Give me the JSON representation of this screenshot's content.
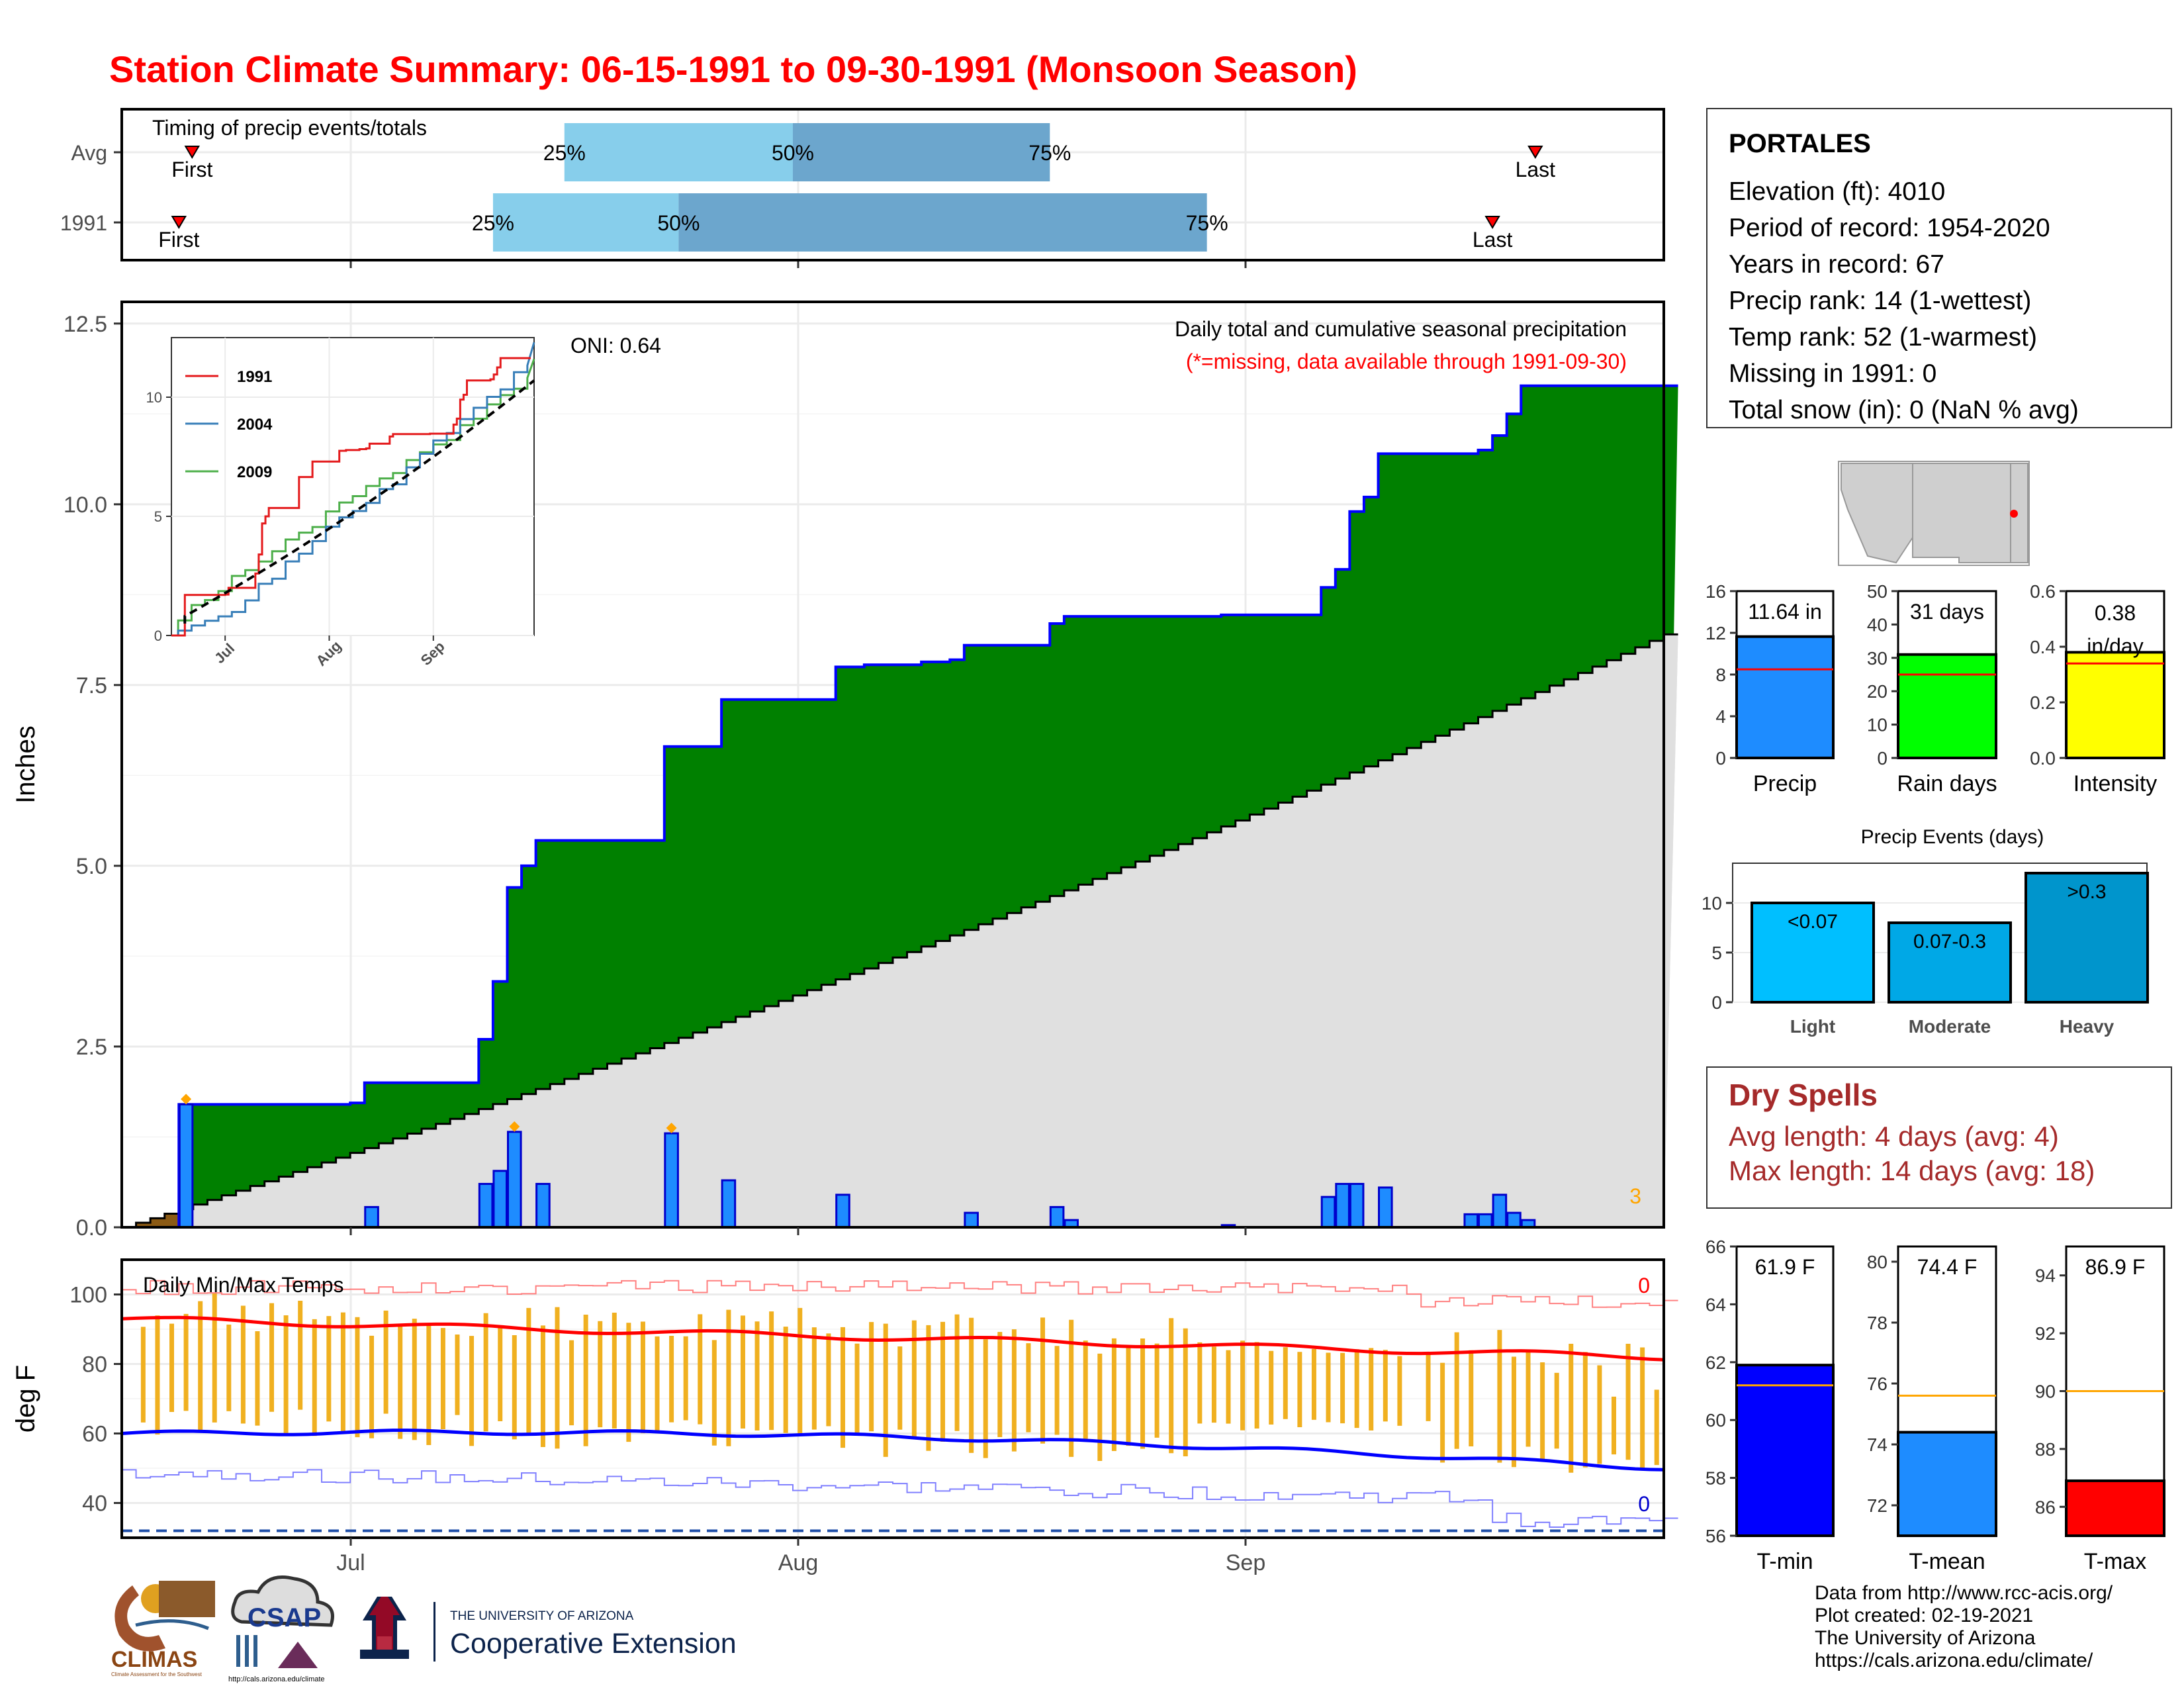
{
  "title": "Station Climate Summary: 06-15-1991 to 09-30-1991 (Monsoon Season)",
  "colors": {
    "title_red": "#ff0000",
    "precip_green": "#008000",
    "normal_gray": "#e0e0e0",
    "bar_blue": "#1e8cff",
    "light_blue_q": "#87ceeb",
    "mid_blue_q": "#6ca6cd",
    "tmax_red": "#ff0000",
    "tmin_blue": "#0000ff",
    "temp_range_orange": "#f0b020",
    "dry_spell_brown": "#a52a2a"
  },
  "timing": {
    "title": "Timing of precip events/totals",
    "rows": [
      {
        "label": "Avg",
        "first_date": "1991-06-19",
        "q25_date": "1991-07-16",
        "q50_date": "1991-08-01",
        "q75_date": "1991-08-19",
        "last_date": "1991-09-22",
        "q25_label": "25%",
        "q50_label": "50%",
        "q75_label": "75%",
        "first_label": "First",
        "last_label": "Last"
      },
      {
        "label": "1991",
        "first_date": "1991-06-19",
        "q25_date": "1991-07-11",
        "q50_date": "1991-07-24",
        "q75_date": "1991-08-30",
        "last_date": "1991-09-19",
        "q25_label": "25%",
        "q50_label": "50%",
        "q75_label": "75%",
        "first_label": "First",
        "last_label": "Last"
      }
    ]
  },
  "station": {
    "name": "PORTALES",
    "lines": [
      "Elevation (ft): 4010",
      "Period of record: 1954-2020",
      "Years in record: 67",
      "Precip rank: 14 (1-wettest)",
      "Temp rank: 52 (1-warmest)",
      "Missing in 1991: 0",
      "Total snow (in): 0 (NaN % avg)"
    ]
  },
  "precip_panel": {
    "ylabel": "Inches",
    "yticks": [
      "0.0",
      "2.5",
      "5.0",
      "7.5",
      "10.0",
      "12.5"
    ],
    "annotation_title": "Daily total and cumulative seasonal precipitation",
    "annotation_missing": "(*=missing, data available through 1991-09-30)",
    "oni": "ONI: 0.64",
    "corner_count": "3"
  },
  "inset": {
    "xticks": [
      "Jul",
      "Aug",
      "Sep"
    ],
    "yticks": [
      "0",
      "5",
      "10"
    ],
    "legend": [
      {
        "name": "1991",
        "color": "#e41a1c"
      },
      {
        "name": "2004",
        "color": "#377eb8"
      },
      {
        "name": "2009",
        "color": "#4daf4a"
      }
    ]
  },
  "temp_panel": {
    "ylabel": "deg F",
    "title": "Daily Min/Max Temps",
    "yticks": [
      "40",
      "60",
      "80",
      "100"
    ],
    "count_top": "0",
    "count_bottom": "0"
  },
  "x_axis": {
    "ticks": [
      "Jul",
      "Aug",
      "Sep"
    ]
  },
  "summary_bars": [
    {
      "label": "Precip",
      "value_text": "11.64 in",
      "yticks": [
        "0",
        "4",
        "8",
        "12",
        "16"
      ]
    },
    {
      "label": "Rain days",
      "value_text": "31 days",
      "yticks": [
        "0",
        "10",
        "20",
        "30",
        "40",
        "50"
      ]
    },
    {
      "label": "Intensity",
      "value_text": "0.38",
      "value_text2": "in/day",
      "yticks": [
        "0.0",
        "0.2",
        "0.4",
        "0.6"
      ]
    }
  ],
  "precip_events": {
    "title": "Precip Events (days)",
    "yticks": [
      "0",
      "5",
      "10"
    ]
  },
  "dry_spells": {
    "title": "Dry Spells",
    "avg_line": "Avg length: 4 days (avg: 4)",
    "max_line": "Max length: 14 days (avg: 18)"
  },
  "temp_bars": [
    {
      "label": "T-min",
      "value_text": "61.9 F",
      "yticks": [
        "56",
        "58",
        "60",
        "62",
        "64",
        "66"
      ]
    },
    {
      "label": "T-mean",
      "value_text": "74.4 F",
      "yticks": [
        "72",
        "74",
        "76",
        "78",
        "80"
      ]
    },
    {
      "label": "T-max",
      "value_text": "86.9 F",
      "yticks": [
        "86",
        "88",
        "90",
        "92",
        "94"
      ]
    }
  ],
  "logos": {
    "climas": "CLIMAS",
    "climas_sub": "Climate Assessment for the Southwest",
    "csap": "CSAP",
    "csap_url": "http://cals.arizona.edu/climate",
    "ua_line1": "THE UNIVERSITY OF ARIZONA",
    "ua_line2": "Cooperative Extension"
  },
  "footer": [
    "Data from http://www.rcc-acis.org/",
    "Plot created: 02-19-2021",
    "The University of Arizona",
    "https://cals.arizona.edu/climate/"
  ],
  "chart_data": [
    {
      "type": "area",
      "title": "Daily total and cumulative seasonal precipitation",
      "ylabel": "Inches",
      "ylim": [
        0,
        12.5
      ],
      "x_range": [
        "1991-06-15",
        "1991-09-30"
      ],
      "series": [
        {
          "name": "cumulative precipitation (1991)",
          "steps": [
            [
              "1991-06-15",
              0.0
            ],
            [
              "1991-06-19",
              1.7
            ],
            [
              "1991-07-01",
              1.72
            ],
            [
              "1991-07-02",
              2.0
            ],
            [
              "1991-07-10",
              2.6
            ],
            [
              "1991-07-11",
              3.4
            ],
            [
              "1991-07-12",
              4.7
            ],
            [
              "1991-07-13",
              5.0
            ],
            [
              "1991-07-14",
              5.35
            ],
            [
              "1991-07-23",
              6.65
            ],
            [
              "1991-07-27",
              7.3
            ],
            [
              "1991-08-04",
              7.75
            ],
            [
              "1991-08-06",
              7.78
            ],
            [
              "1991-08-10",
              7.82
            ],
            [
              "1991-08-12",
              7.85
            ],
            [
              "1991-08-13",
              8.05
            ],
            [
              "1991-08-19",
              8.35
            ],
            [
              "1991-08-20",
              8.45
            ],
            [
              "1991-08-31",
              8.47
            ],
            [
              "1991-09-07",
              8.85
            ],
            [
              "1991-09-08",
              9.1
            ],
            [
              "1991-09-09",
              9.9
            ],
            [
              "1991-09-10",
              10.1
            ],
            [
              "1991-09-11",
              10.7
            ],
            [
              "1991-09-18",
              10.75
            ],
            [
              "1991-09-19",
              10.95
            ],
            [
              "1991-09-20",
              11.25
            ],
            [
              "1991-09-21",
              11.64
            ],
            [
              "1991-09-30",
              11.64
            ]
          ]
        },
        {
          "name": "average cumulative precipitation",
          "start": 0.0,
          "end": 8.2
        },
        {
          "name": "daily precipitation",
          "values": [
            [
              "1991-06-19",
              1.7
            ],
            [
              "1991-07-02",
              0.28
            ],
            [
              "1991-07-10",
              0.6
            ],
            [
              "1991-07-11",
              0.78
            ],
            [
              "1991-07-12",
              1.32
            ],
            [
              "1991-07-14",
              0.6
            ],
            [
              "1991-07-23",
              1.3
            ],
            [
              "1991-07-27",
              0.65
            ],
            [
              "1991-08-04",
              0.45
            ],
            [
              "1991-08-13",
              0.2
            ],
            [
              "1991-08-19",
              0.28
            ],
            [
              "1991-08-20",
              0.1
            ],
            [
              "1991-08-31",
              0.03
            ],
            [
              "1991-09-07",
              0.42
            ],
            [
              "1991-09-08",
              0.6
            ],
            [
              "1991-09-09",
              0.6
            ],
            [
              "1991-09-11",
              0.55
            ],
            [
              "1991-09-17",
              0.18
            ],
            [
              "1991-09-18",
              0.18
            ],
            [
              "1991-09-19",
              0.45
            ],
            [
              "1991-09-20",
              0.2
            ],
            [
              "1991-09-21",
              0.1
            ]
          ]
        }
      ]
    },
    {
      "type": "line",
      "title": "Daily Min/Max Temps",
      "ylabel": "deg F",
      "ylim": [
        30,
        110
      ],
      "series": [
        {
          "name": "average max",
          "start": 93,
          "end": 82
        },
        {
          "name": "average min",
          "start": 60,
          "end": 50
        },
        {
          "name": "record high",
          "approx": 101
        },
        {
          "name": "record low",
          "approx": 45
        }
      ]
    },
    {
      "type": "bar",
      "categories": [
        "Precip",
        "Rain days",
        "Intensity"
      ],
      "values": [
        11.64,
        31,
        0.38
      ],
      "averages": [
        8.5,
        25,
        0.34
      ],
      "ylims": [
        [
          0,
          16
        ],
        [
          0,
          50
        ],
        [
          0,
          0.6
        ]
      ]
    },
    {
      "type": "bar",
      "title": "Precip Events (days)",
      "categories": [
        "Light",
        "Moderate",
        "Heavy"
      ],
      "bar_labels": [
        "<0.07",
        "0.07-0.3",
        ">0.3"
      ],
      "values": [
        10,
        8,
        13
      ],
      "ylim": [
        0,
        14
      ]
    },
    {
      "type": "bar",
      "categories": [
        "T-min",
        "T-mean",
        "T-max"
      ],
      "values": [
        61.9,
        74.4,
        86.9
      ],
      "averages": [
        61.2,
        75.6,
        90.0
      ],
      "ylims": [
        [
          56,
          66
        ],
        [
          71,
          80.5
        ],
        [
          85,
          95
        ]
      ]
    },
    {
      "type": "line",
      "title": "inset cumulative precipitation",
      "xticks": [
        "Jul",
        "Aug",
        "Sep"
      ],
      "ylim": [
        0,
        12.5
      ],
      "series": [
        {
          "name": "1991",
          "end": 11.64
        },
        {
          "name": "2004",
          "end": 12.3
        },
        {
          "name": "2009",
          "end": 11.6
        }
      ]
    }
  ]
}
